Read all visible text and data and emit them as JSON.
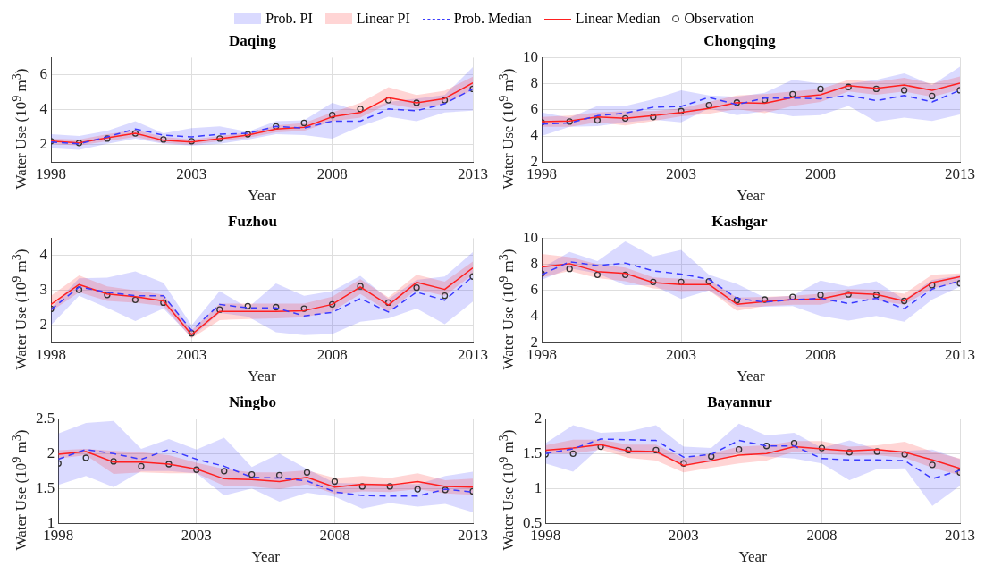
{
  "chart_data": [
    {
      "type": "line",
      "title": "Daqing",
      "xlabel": "Year",
      "ylabel": "Water Use (10$^{9}$ m$^{3}$)",
      "annotations": [
        "Prob. PI",
        "Linear PI"
      ],
      "x": [
        1998,
        1999,
        2000,
        2001,
        2002,
        2003,
        2004,
        2005,
        2006,
        2007,
        2008,
        2009,
        2010,
        2011,
        2012,
        2013
      ],
      "xlim": [
        1998,
        2013
      ],
      "xticks": [
        1998,
        2003,
        2008,
        2013
      ],
      "ylim": [
        1,
        7
      ],
      "yticks": [
        2,
        4,
        6
      ],
      "grid": true,
      "legend": "top",
      "series": [
        {
          "name": "Prob. Median",
          "type": "line",
          "line_style": "dashed",
          "color": "#3a3aff",
          "values": [
            2.15,
            2.05,
            2.45,
            2.9,
            2.55,
            2.45,
            2.6,
            2.65,
            3.05,
            2.95,
            3.35,
            3.35,
            4.05,
            3.95,
            4.35,
            5.2
          ],
          "lower": [
            1.8,
            1.7,
            2.05,
            2.35,
            2.05,
            1.95,
            2.05,
            2.3,
            2.6,
            2.55,
            2.35,
            3.05,
            3.6,
            3.35,
            3.85,
            3.95
          ],
          "upper": [
            2.6,
            2.5,
            2.8,
            3.35,
            2.65,
            2.95,
            3.05,
            2.75,
            3.35,
            3.4,
            4.4,
            3.9,
            4.45,
            4.65,
            4.85,
            6.45
          ]
        },
        {
          "name": "Linear Median",
          "type": "line",
          "line_style": "solid",
          "color": "#ff2020",
          "values": [
            2.2,
            2.1,
            2.4,
            2.65,
            2.25,
            2.15,
            2.35,
            2.55,
            2.9,
            3.0,
            3.6,
            3.85,
            4.7,
            4.4,
            4.65,
            5.55
          ],
          "lower": [
            2.05,
            1.95,
            2.2,
            2.45,
            2.1,
            2.0,
            2.2,
            2.4,
            2.7,
            2.8,
            3.35,
            3.55,
            4.35,
            4.05,
            4.35,
            5.15
          ],
          "upper": [
            2.35,
            2.3,
            2.6,
            2.85,
            2.45,
            2.3,
            2.5,
            2.7,
            3.1,
            3.25,
            3.85,
            4.4,
            5.3,
            4.85,
            5.1,
            5.9
          ]
        },
        {
          "name": "Observation",
          "type": "scatter",
          "marker": "circle",
          "color": "#333333",
          "values": [
            2.2,
            2.1,
            2.35,
            2.65,
            2.3,
            2.2,
            2.35,
            2.6,
            3.05,
            3.25,
            3.7,
            4.05,
            4.55,
            4.4,
            4.55,
            5.2
          ]
        }
      ]
    },
    {
      "type": "line",
      "title": "Chongqing",
      "xlabel": "Year",
      "ylabel": "Water Use (10$^{9}$ m$^{3}$)",
      "x": [
        1998,
        1999,
        2000,
        2001,
        2002,
        2003,
        2004,
        2005,
        2006,
        2007,
        2008,
        2009,
        2010,
        2011,
        2012,
        2013
      ],
      "xlim": [
        1998,
        2013
      ],
      "xticks": [
        1998,
        2003,
        2008,
        2013
      ],
      "ylim": [
        2,
        10
      ],
      "yticks": [
        2,
        4,
        6,
        8,
        10
      ],
      "grid": true,
      "series": [
        {
          "type": "line",
          "line_style": "dashed",
          "color": "#3a3aff",
          "values": [
            4.9,
            5.0,
            5.55,
            5.75,
            6.2,
            6.25,
            6.95,
            6.4,
            6.9,
            6.9,
            6.85,
            7.1,
            6.7,
            7.1,
            6.6,
            7.5
          ],
          "lower": [
            4.0,
            4.7,
            4.75,
            5.05,
            5.25,
            5.05,
            6.1,
            5.6,
            5.9,
            5.5,
            5.6,
            6.3,
            5.1,
            5.4,
            5.15,
            5.65
          ],
          "upper": [
            5.8,
            5.4,
            6.3,
            6.3,
            6.8,
            7.5,
            7.1,
            7.0,
            7.3,
            8.3,
            8.0,
            8.0,
            8.3,
            8.8,
            7.9,
            9.3
          ]
        },
        {
          "type": "line",
          "line_style": "solid",
          "color": "#ff2020",
          "values": [
            5.1,
            5.15,
            5.45,
            5.35,
            5.55,
            5.8,
            6.1,
            6.55,
            6.5,
            6.95,
            7.15,
            7.85,
            7.65,
            7.9,
            7.5,
            8.05
          ],
          "lower": [
            4.7,
            4.7,
            5.05,
            4.8,
            5.15,
            5.5,
            5.7,
            6.05,
            5.75,
            6.3,
            6.6,
            7.4,
            7.15,
            7.4,
            7.0,
            7.55
          ],
          "upper": [
            5.45,
            5.55,
            5.8,
            5.9,
            5.9,
            6.1,
            6.6,
            7.1,
            7.2,
            7.4,
            7.6,
            8.3,
            8.15,
            8.45,
            8.0,
            8.55
          ]
        },
        {
          "type": "scatter",
          "marker": "circle",
          "color": "#333333",
          "values": [
            5.05,
            5.1,
            5.2,
            5.35,
            5.45,
            5.9,
            6.35,
            6.55,
            6.75,
            7.2,
            7.6,
            7.75,
            7.6,
            7.5,
            7.05,
            7.5
          ]
        }
      ]
    },
    {
      "type": "line",
      "title": "Fuzhou",
      "xlabel": "Year",
      "ylabel": "Water Use (10$^{9}$ m$^{3}$)",
      "x": [
        1998,
        1999,
        2000,
        2001,
        2002,
        2003,
        2004,
        2005,
        2006,
        2007,
        2008,
        2009,
        2010,
        2011,
        2012,
        2013
      ],
      "xlim": [
        1998,
        2013
      ],
      "xticks": [
        1998,
        2003,
        2008,
        2013
      ],
      "ylim": [
        1.5,
        4.5
      ],
      "yticks": [
        2,
        3,
        4
      ],
      "grid": true,
      "series": [
        {
          "type": "line",
          "line_style": "dashed",
          "color": "#3a3aff",
          "values": [
            2.45,
            3.1,
            2.95,
            2.85,
            2.85,
            1.85,
            2.6,
            2.5,
            2.5,
            2.27,
            2.37,
            2.77,
            2.38,
            2.95,
            2.72,
            3.4
          ],
          "lower": [
            2.0,
            2.85,
            2.5,
            2.12,
            2.48,
            1.65,
            2.35,
            2.25,
            1.8,
            1.72,
            1.75,
            2.1,
            2.2,
            2.48,
            2.03,
            2.68
          ],
          "upper": [
            2.5,
            3.35,
            3.37,
            3.55,
            3.22,
            2.0,
            2.98,
            2.5,
            3.2,
            2.85,
            2.98,
            3.42,
            2.75,
            3.3,
            3.4,
            4.1
          ]
        },
        {
          "type": "line",
          "line_style": "solid",
          "color": "#ff2020",
          "values": [
            2.6,
            3.17,
            2.9,
            2.82,
            2.7,
            1.73,
            2.4,
            2.4,
            2.4,
            2.42,
            2.6,
            3.1,
            2.58,
            3.23,
            3.03,
            3.65
          ],
          "lower": [
            2.4,
            2.95,
            2.7,
            2.65,
            2.55,
            1.63,
            2.15,
            2.18,
            2.2,
            2.23,
            2.4,
            2.9,
            2.4,
            3.03,
            2.85,
            3.45
          ],
          "upper": [
            2.85,
            3.43,
            3.12,
            3.0,
            2.88,
            1.85,
            2.62,
            2.62,
            2.62,
            2.62,
            2.82,
            3.32,
            2.8,
            3.45,
            3.25,
            3.83
          ]
        },
        {
          "type": "scatter",
          "marker": "circle",
          "color": "#333333",
          "values": [
            2.47,
            3.02,
            2.87,
            2.73,
            2.65,
            1.77,
            2.45,
            2.55,
            2.52,
            2.48,
            2.6,
            3.12,
            2.65,
            3.08,
            2.85,
            3.4
          ]
        }
      ]
    },
    {
      "type": "line",
      "title": "Kashgar",
      "xlabel": "Year",
      "ylabel": "Water Use (10$^{9}$ m$^{3}$)",
      "x": [
        1998,
        1999,
        2000,
        2001,
        2002,
        2003,
        2004,
        2005,
        2006,
        2007,
        2008,
        2009,
        2010,
        2011,
        2012,
        2013
      ],
      "xlim": [
        1998,
        2013
      ],
      "xticks": [
        1998,
        2003,
        2008,
        2013
      ],
      "ylim": [
        2,
        10
      ],
      "yticks": [
        2,
        4,
        6,
        8,
        10
      ],
      "grid": true,
      "series": [
        {
          "type": "line",
          "line_style": "dashed",
          "color": "#3a3aff",
          "values": [
            7.2,
            8.2,
            7.9,
            8.1,
            7.5,
            7.25,
            6.85,
            5.4,
            5.1,
            5.3,
            5.4,
            5.0,
            5.4,
            4.6,
            6.1,
            6.75
          ],
          "lower": [
            6.8,
            7.7,
            7.3,
            6.4,
            6.4,
            5.35,
            6.0,
            4.75,
            4.75,
            4.8,
            4.05,
            3.7,
            4.05,
            3.6,
            5.3,
            6.3
          ],
          "upper": [
            7.7,
            8.95,
            8.25,
            9.75,
            8.6,
            9.1,
            7.2,
            6.5,
            5.45,
            5.6,
            6.75,
            6.3,
            6.7,
            5.3,
            6.8,
            7.15
          ]
        },
        {
          "type": "line",
          "line_style": "solid",
          "color": "#ff2020",
          "values": [
            7.8,
            8.05,
            7.45,
            7.3,
            6.6,
            6.45,
            6.45,
            4.95,
            5.15,
            5.3,
            5.35,
            5.8,
            5.7,
            5.2,
            6.6,
            7.05
          ],
          "lower": [
            7.0,
            7.5,
            6.95,
            6.7,
            6.15,
            5.95,
            6.0,
            4.45,
            4.8,
            4.9,
            4.9,
            5.45,
            5.25,
            4.9,
            6.15,
            6.6
          ],
          "upper": [
            8.8,
            8.55,
            8.0,
            7.75,
            7.0,
            6.9,
            6.8,
            5.45,
            5.5,
            5.6,
            5.75,
            6.1,
            6.05,
            5.75,
            7.2,
            7.3
          ]
        },
        {
          "type": "scatter",
          "marker": "circle",
          "color": "#333333",
          "values": [
            7.3,
            7.65,
            7.2,
            7.2,
            6.65,
            6.65,
            6.7,
            5.25,
            5.3,
            5.5,
            5.65,
            5.7,
            5.65,
            5.2,
            6.4,
            6.55
          ]
        }
      ]
    },
    {
      "type": "line",
      "title": "Ningbo",
      "xlabel": "Year",
      "ylabel": "Water Use (10$^{9}$ m$^{3}$)",
      "x": [
        1998,
        1999,
        2000,
        2001,
        2002,
        2003,
        2004,
        2005,
        2006,
        2007,
        2008,
        2009,
        2010,
        2011,
        2012,
        2013
      ],
      "xlim": [
        1998,
        2013
      ],
      "xticks": [
        1998,
        2003,
        2008,
        2013
      ],
      "ylim": [
        1,
        2.5
      ],
      "yticks": [
        1,
        1.5,
        2,
        2.5
      ],
      "grid": true,
      "series": [
        {
          "type": "line",
          "line_style": "dashed",
          "color": "#3a3aff",
          "values": [
            1.92,
            2.06,
            2.0,
            1.92,
            2.06,
            1.92,
            1.82,
            1.66,
            1.65,
            1.61,
            1.45,
            1.4,
            1.39,
            1.39,
            1.49,
            1.45
          ],
          "lower": [
            1.55,
            1.68,
            1.52,
            1.75,
            1.75,
            1.72,
            1.4,
            1.5,
            1.31,
            1.44,
            1.38,
            1.21,
            1.29,
            1.24,
            1.28,
            1.16
          ],
          "upper": [
            2.29,
            2.44,
            2.47,
            2.07,
            2.21,
            2.06,
            2.23,
            1.81,
            2.0,
            1.78,
            1.58,
            1.57,
            1.57,
            1.56,
            1.68,
            1.74
          ]
        },
        {
          "type": "line",
          "line_style": "solid",
          "color": "#ff2020",
          "values": [
            1.99,
            2.03,
            1.88,
            1.88,
            1.85,
            1.78,
            1.64,
            1.63,
            1.6,
            1.66,
            1.52,
            1.56,
            1.55,
            1.6,
            1.53,
            1.52
          ],
          "lower": [
            1.93,
            1.98,
            1.71,
            1.73,
            1.72,
            1.72,
            1.54,
            1.53,
            1.49,
            1.56,
            1.42,
            1.46,
            1.45,
            1.49,
            1.43,
            1.41
          ],
          "upper": [
            2.05,
            2.07,
            2.04,
            2.02,
            1.98,
            1.87,
            1.78,
            1.73,
            1.73,
            1.76,
            1.65,
            1.68,
            1.65,
            1.72,
            1.62,
            1.64
          ]
        },
        {
          "type": "scatter",
          "marker": "circle",
          "color": "#333333",
          "values": [
            1.86,
            1.94,
            1.89,
            1.82,
            1.85,
            1.77,
            1.75,
            1.7,
            1.69,
            1.73,
            1.6,
            1.53,
            1.53,
            1.49,
            1.48,
            1.46
          ]
        }
      ]
    },
    {
      "type": "line",
      "title": "Bayannur",
      "xlabel": "Year",
      "ylabel": "Water Use (10$^{9}$ m$^{3}$)",
      "x": [
        1998,
        1999,
        2000,
        2001,
        2002,
        2003,
        2004,
        2005,
        2006,
        2007,
        2008,
        2009,
        2010,
        2011,
        2012,
        2013
      ],
      "xlim": [
        1998,
        2013
      ],
      "xticks": [
        1998,
        2003,
        2008,
        2013
      ],
      "ylim": [
        0.5,
        2
      ],
      "yticks": [
        0.5,
        1,
        1.5,
        2
      ],
      "grid": true,
      "series": [
        {
          "type": "line",
          "line_style": "dashed",
          "color": "#3a3aff",
          "values": [
            1.5,
            1.57,
            1.71,
            1.7,
            1.69,
            1.45,
            1.49,
            1.69,
            1.61,
            1.61,
            1.43,
            1.41,
            1.41,
            1.4,
            1.14,
            1.26
          ],
          "lower": [
            1.36,
            1.24,
            1.6,
            1.5,
            1.5,
            1.35,
            1.38,
            1.51,
            1.46,
            1.43,
            1.36,
            1.12,
            1.28,
            1.29,
            0.75,
            1.04
          ],
          "upper": [
            1.65,
            1.91,
            1.8,
            1.82,
            1.91,
            1.6,
            1.58,
            1.93,
            1.76,
            1.8,
            1.58,
            1.69,
            1.56,
            1.54,
            1.56,
            1.42
          ]
        },
        {
          "type": "line",
          "line_style": "solid",
          "color": "#ff2020",
          "values": [
            1.55,
            1.58,
            1.63,
            1.54,
            1.53,
            1.33,
            1.4,
            1.48,
            1.5,
            1.6,
            1.57,
            1.54,
            1.56,
            1.52,
            1.41,
            1.29
          ],
          "lower": [
            1.5,
            1.5,
            1.56,
            1.44,
            1.4,
            1.23,
            1.3,
            1.36,
            1.4,
            1.53,
            1.5,
            1.47,
            1.48,
            1.44,
            1.3,
            1.19
          ],
          "upper": [
            1.62,
            1.7,
            1.7,
            1.63,
            1.63,
            1.43,
            1.5,
            1.6,
            1.62,
            1.68,
            1.68,
            1.6,
            1.62,
            1.67,
            1.53,
            1.43
          ]
        },
        {
          "type": "scatter",
          "marker": "circle",
          "color": "#333333",
          "values": [
            1.49,
            1.5,
            1.6,
            1.55,
            1.55,
            1.36,
            1.46,
            1.56,
            1.61,
            1.65,
            1.58,
            1.52,
            1.53,
            1.49,
            1.34,
            1.23
          ]
        }
      ]
    }
  ]
}
